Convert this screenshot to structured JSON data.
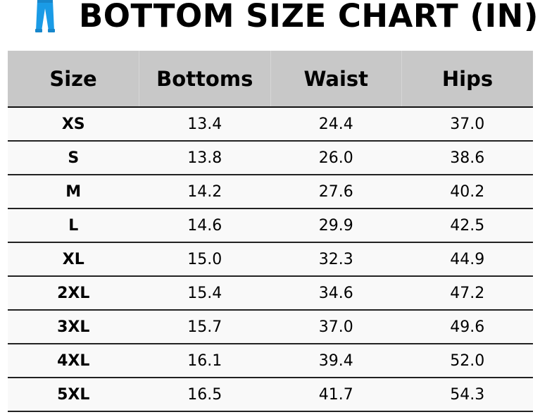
{
  "title": "BOTTOM SIZE CHART (IN)",
  "icon": "pants-icon",
  "colors": {
    "icon": "#1a9be6",
    "header_bg": "#c8c8c8",
    "row_bg": "#f9f9f9"
  },
  "table": {
    "headers": [
      "Size",
      "Bottoms",
      "Waist",
      "Hips"
    ],
    "rows": [
      [
        "XS",
        "13.4",
        "24.4",
        "37.0"
      ],
      [
        "S",
        "13.8",
        "26.0",
        "38.6"
      ],
      [
        "M",
        "14.2",
        "27.6",
        "40.2"
      ],
      [
        "L",
        "14.6",
        "29.9",
        "42.5"
      ],
      [
        "XL",
        "15.0",
        "32.3",
        "44.9"
      ],
      [
        "2XL",
        "15.4",
        "34.6",
        "47.2"
      ],
      [
        "3XL",
        "15.7",
        "37.0",
        "49.6"
      ],
      [
        "4XL",
        "16.1",
        "39.4",
        "52.0"
      ],
      [
        "5XL",
        "16.5",
        "41.7",
        "54.3"
      ]
    ]
  }
}
